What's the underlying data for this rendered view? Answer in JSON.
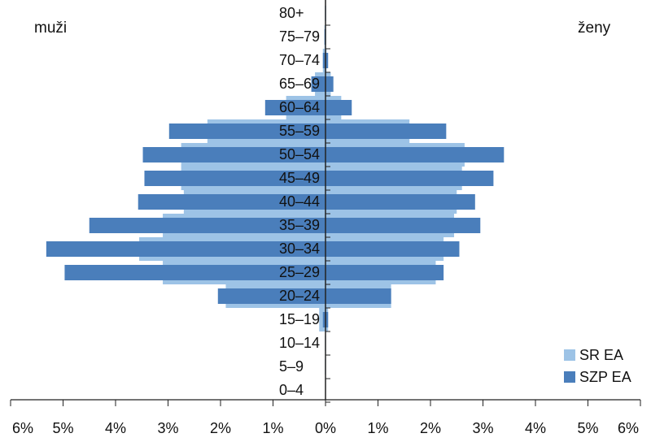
{
  "chart_data": {
    "type": "bar",
    "orientation": "horizontal",
    "layout": "population-pyramid",
    "title": "",
    "left_label": "muži",
    "right_label": "ženy",
    "categories": [
      "80+",
      "75–79",
      "70–74",
      "65–69",
      "60–64",
      "55–59",
      "50–54",
      "45–49",
      "40–44",
      "35–39",
      "30–34",
      "25–29",
      "20–24",
      "15–19",
      "10–14",
      "5–9",
      "0–4"
    ],
    "xlim": [
      -6,
      6
    ],
    "x_ticks": [
      -6,
      -5,
      -4,
      -3,
      -2,
      -1,
      0,
      1,
      2,
      3,
      4,
      5,
      6
    ],
    "x_tick_labels": [
      "6%",
      "5%",
      "4%",
      "3%",
      "2%",
      "1%",
      "0%",
      "1%",
      "2%",
      "3%",
      "4%",
      "5%",
      "6%"
    ],
    "legend_position": "bottom-right",
    "series": [
      {
        "name": "SR EA",
        "color": "#9dc3e6",
        "men": [
          0.0,
          0.02,
          0.05,
          0.2,
          0.75,
          2.25,
          2.75,
          2.75,
          2.7,
          3.1,
          3.55,
          3.1,
          1.9,
          0.12,
          0.0,
          0.0,
          0.0
        ],
        "women": [
          0.0,
          0.0,
          0.02,
          0.1,
          0.3,
          1.6,
          2.65,
          2.6,
          2.5,
          2.45,
          2.25,
          2.1,
          1.25,
          0.05,
          0.0,
          0.0,
          0.0
        ]
      },
      {
        "name": "SZP EA",
        "color": "#4a7ebb",
        "men": [
          0.01,
          0.02,
          0.05,
          0.27,
          1.15,
          2.98,
          3.48,
          3.45,
          3.57,
          4.5,
          5.32,
          4.97,
          2.05,
          0.05,
          0.01,
          0.01,
          0.0
        ],
        "women": [
          0.01,
          0.01,
          0.05,
          0.15,
          0.5,
          2.3,
          3.4,
          3.2,
          2.85,
          2.95,
          2.55,
          2.25,
          1.25,
          0.05,
          0.0,
          0.0,
          0.0
        ]
      }
    ]
  }
}
